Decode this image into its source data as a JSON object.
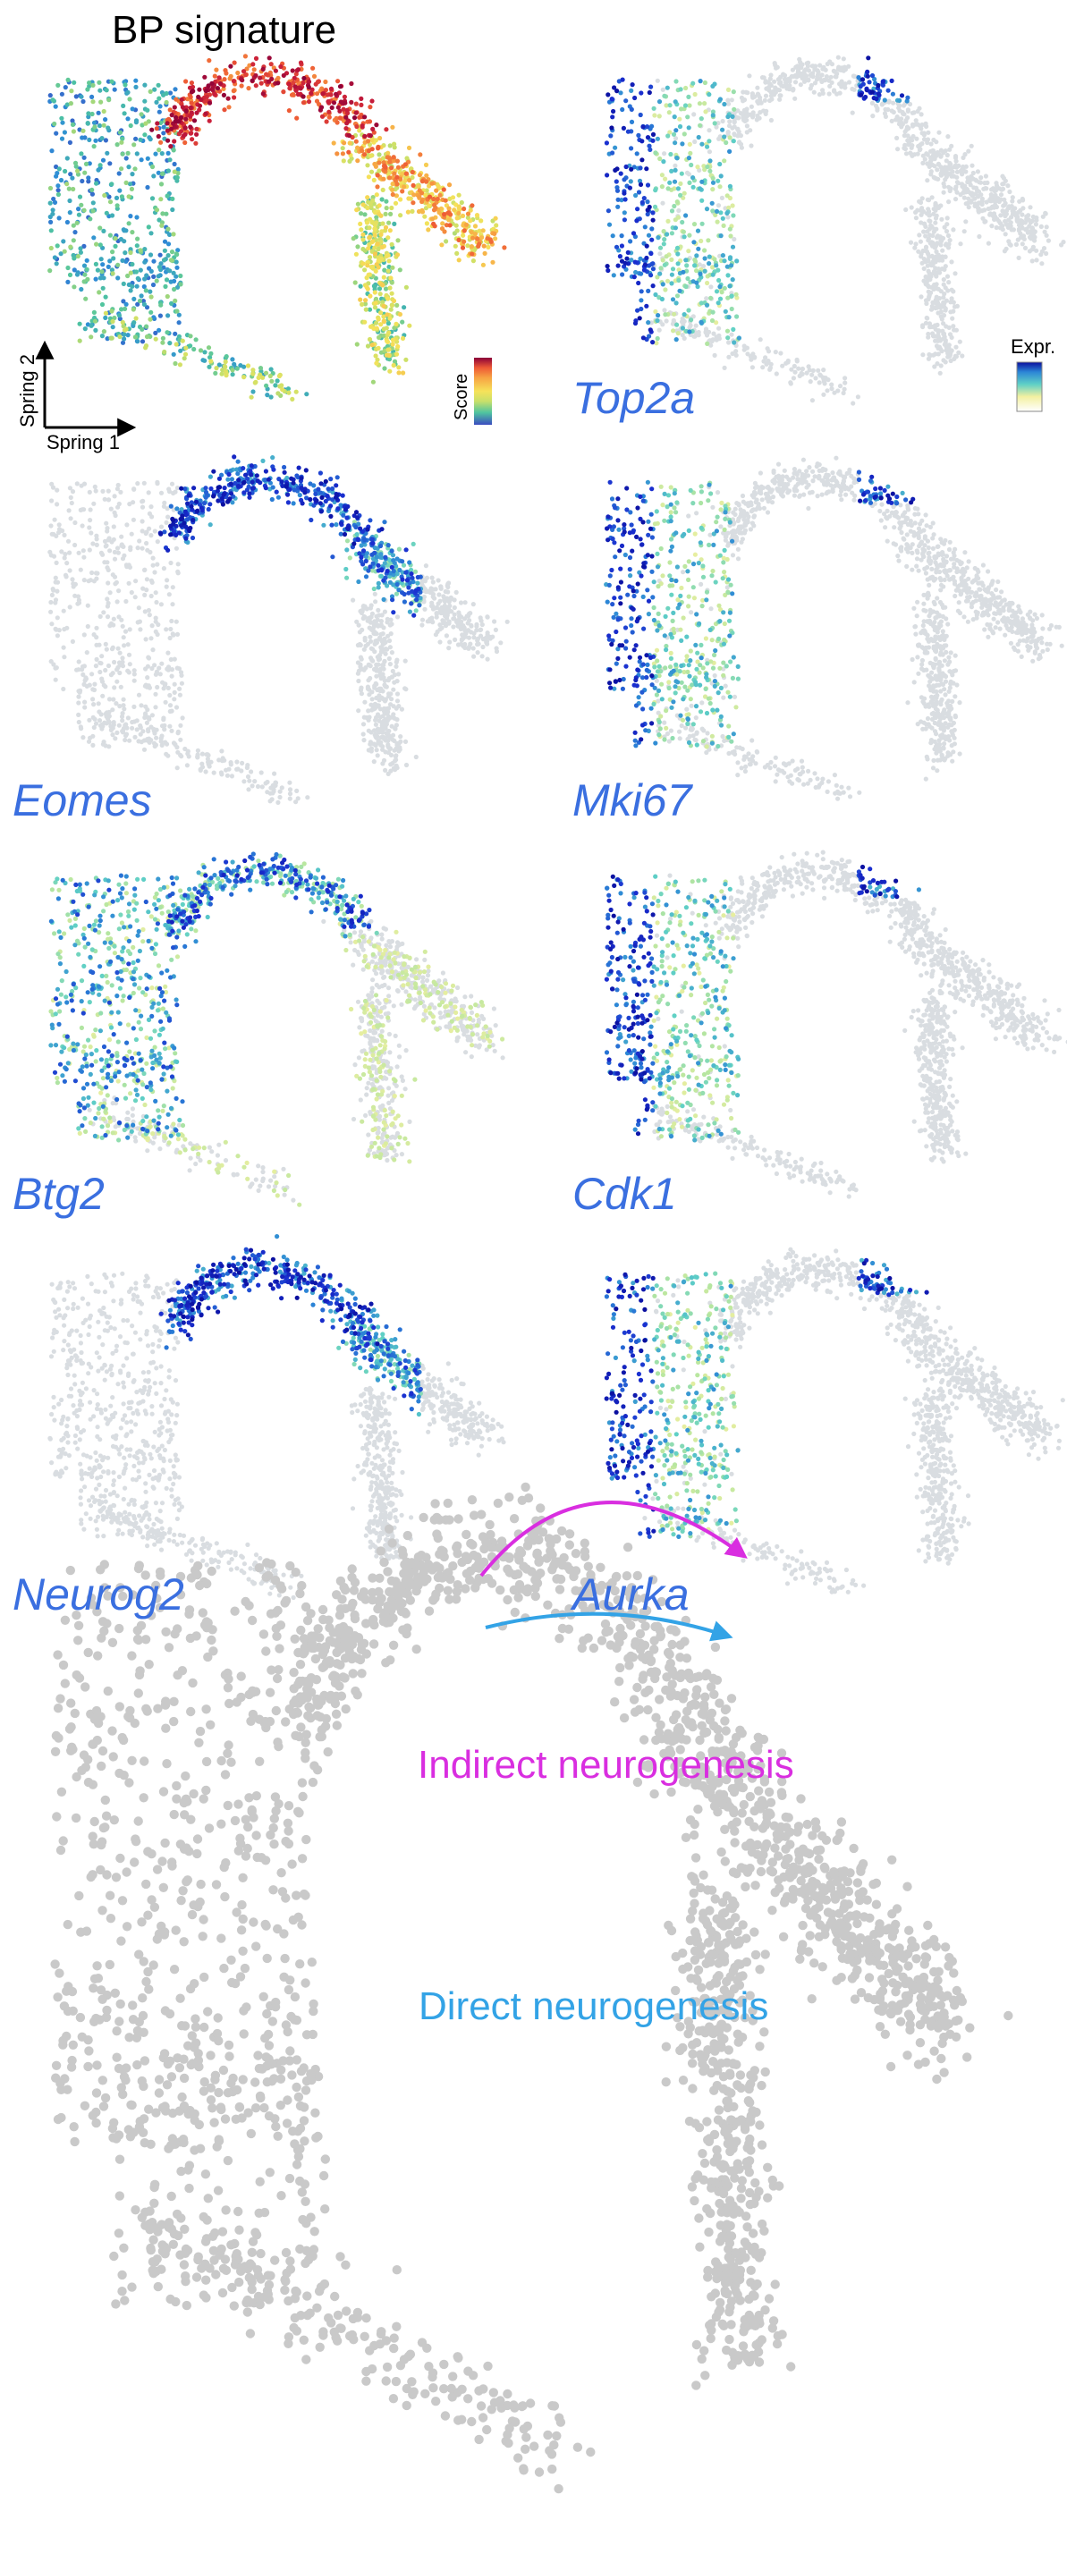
{
  "title": "BP signature",
  "axes": {
    "x_label": "Spring 1",
    "y_label": "Spring 2"
  },
  "legends": {
    "score_label": "Score",
    "expr_label": "Expr."
  },
  "panels": [
    {
      "name": "BP signature",
      "italic": false,
      "color_mode": "score",
      "hotspot": "top-arc"
    },
    {
      "name": "Top2a",
      "italic": true,
      "color_mode": "expr",
      "hotspot": "left-column"
    },
    {
      "name": "Eomes",
      "italic": true,
      "color_mode": "expr",
      "hotspot": "top-arc"
    },
    {
      "name": "Mki67",
      "italic": true,
      "color_mode": "expr",
      "hotspot": "left-column"
    },
    {
      "name": "Btg2",
      "italic": true,
      "color_mode": "expr",
      "hotspot": "left-and-arc"
    },
    {
      "name": "Cdk1",
      "italic": true,
      "color_mode": "expr",
      "hotspot": "left-column"
    },
    {
      "name": "Neurog2",
      "italic": true,
      "color_mode": "expr",
      "hotspot": "top-arc"
    },
    {
      "name": "Aurka",
      "italic": true,
      "color_mode": "expr",
      "hotspot": "left-column"
    }
  ],
  "bottom": {
    "indirect_label": "Indirect neurogenesis",
    "direct_label": "Direct neurogenesis"
  },
  "colors": {
    "gene_label": "#3a6fe0",
    "indirect_arrow": "#d92ee0",
    "direct_arrow": "#33a3e6",
    "background_cells": "#c9c9c9",
    "low_expr": "#d9dde1",
    "score_scale": [
      "#3b4cc0",
      "#2f8fd6",
      "#4fc4a0",
      "#c8e06a",
      "#f6e25a",
      "#f7a443",
      "#ee5a35",
      "#c81d3a",
      "#8b0038"
    ],
    "expr_scale": [
      "#e2e5e8",
      "#f3f0a0",
      "#b6e6a0",
      "#5fd0c6",
      "#2c86d6",
      "#1a2fd0",
      "#0a0f9e"
    ]
  }
}
